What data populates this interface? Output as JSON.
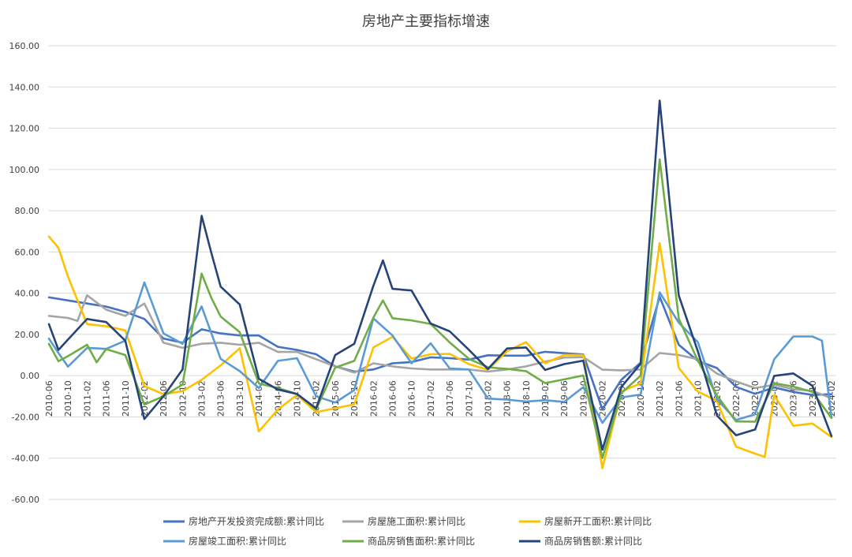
{
  "chart_data": {
    "type": "line",
    "title": "房地产主要指标增速",
    "xlabel": "",
    "ylabel": "",
    "ylim": [
      -60,
      160
    ],
    "y_ticks": [
      "160.00",
      "140.00",
      "120.00",
      "100.00",
      "80.00",
      "60.00",
      "40.00",
      "20.00",
      "0.00",
      "-20.00",
      "-40.00",
      "-60.00"
    ],
    "x_tick_labels": [
      "2010-06",
      "2010-10",
      "2011-02",
      "2011-06",
      "2011-10",
      "2012-02",
      "2012-06",
      "2012-10",
      "2013-02",
      "2013-06",
      "2013-10",
      "2014-02",
      "2014-06",
      "2014-10",
      "2015-02",
      "2015-06",
      "2015-10",
      "2016-02",
      "2016-06",
      "2016-10",
      "2017-02",
      "2017-06",
      "2017-10",
      "2018-02",
      "2018-06",
      "2018-10",
      "2019-02",
      "2019-06",
      "2019-10",
      "2020-02",
      "2020-06",
      "2020-10",
      "2021-02",
      "2021-06",
      "2021-10",
      "2022-02",
      "2022-06",
      "2022-10",
      "2023-02",
      "2023-06",
      "2023-10",
      "2024-02"
    ],
    "grid": true,
    "legend_position": "bottom",
    "series": [
      {
        "name": "房地产开发投资完成额:累计同比",
        "color": "#4472C4",
        "points": [
          [
            "2010-06",
            38
          ],
          [
            "2010-10",
            36.5
          ],
          [
            "2011-02",
            35
          ],
          [
            "2011-06",
            33.5
          ],
          [
            "2011-10",
            31
          ],
          [
            "2012-02",
            27.5
          ],
          [
            "2012-06",
            18
          ],
          [
            "2012-10",
            16
          ],
          [
            "2013-02",
            22.5
          ],
          [
            "2013-06",
            20.5
          ],
          [
            "2013-10",
            19.5
          ],
          [
            "2014-02",
            19.5
          ],
          [
            "2014-06",
            14
          ],
          [
            "2014-10",
            12.5
          ],
          [
            "2015-02",
            10.4
          ],
          [
            "2015-06",
            4.5
          ],
          [
            "2015-10",
            2
          ],
          [
            "2016-02",
            3
          ],
          [
            "2016-06",
            6
          ],
          [
            "2016-10",
            6.6
          ],
          [
            "2017-02",
            8.9
          ],
          [
            "2017-06",
            8.5
          ],
          [
            "2017-10",
            7.8
          ],
          [
            "2018-02",
            9.9
          ],
          [
            "2018-06",
            9.7
          ],
          [
            "2018-10",
            9.7
          ],
          [
            "2019-02",
            11.6
          ],
          [
            "2019-06",
            10.9
          ],
          [
            "2019-10",
            10.3
          ],
          [
            "2020-02",
            -16.3
          ],
          [
            "2020-06",
            -1.9
          ],
          [
            "2020-10",
            6.3
          ],
          [
            "2021-02",
            38.3
          ],
          [
            "2021-06",
            15
          ],
          [
            "2021-10",
            7.2
          ],
          [
            "2022-02",
            3.7
          ],
          [
            "2022-06",
            -5.4
          ],
          [
            "2022-10",
            -8.8
          ],
          [
            "2023-02",
            -5.7
          ],
          [
            "2023-06",
            -7.9
          ],
          [
            "2023-10",
            -9.3
          ],
          [
            "2024-02",
            -9
          ]
        ]
      },
      {
        "name": "房屋施工面积:累计同比",
        "color": "#A5A5A5",
        "points": [
          [
            "2010-06",
            29
          ],
          [
            "2010-10",
            28
          ],
          [
            "2010-12",
            26.6
          ],
          [
            "2011-02",
            39
          ],
          [
            "2011-06",
            32
          ],
          [
            "2011-10",
            29
          ],
          [
            "2012-02",
            35
          ],
          [
            "2012-06",
            16
          ],
          [
            "2012-10",
            13.5
          ],
          [
            "2013-02",
            15.5
          ],
          [
            "2013-06",
            16
          ],
          [
            "2013-10",
            15
          ],
          [
            "2014-02",
            16
          ],
          [
            "2014-06",
            11.5
          ],
          [
            "2014-10",
            11.5
          ],
          [
            "2015-02",
            8
          ],
          [
            "2015-06",
            4.5
          ],
          [
            "2015-10",
            1.5
          ],
          [
            "2016-02",
            6
          ],
          [
            "2016-06",
            4.5
          ],
          [
            "2016-10",
            3.5
          ],
          [
            "2017-02",
            3
          ],
          [
            "2017-06",
            3
          ],
          [
            "2017-10",
            3
          ],
          [
            "2018-02",
            2
          ],
          [
            "2018-06",
            3
          ],
          [
            "2018-10",
            4.5
          ],
          [
            "2019-02",
            6.8
          ],
          [
            "2019-06",
            8.8
          ],
          [
            "2019-10",
            9
          ],
          [
            "2020-02",
            2.9
          ],
          [
            "2020-06",
            2.6
          ],
          [
            "2020-10",
            3
          ],
          [
            "2021-02",
            11
          ],
          [
            "2021-06",
            10
          ],
          [
            "2021-10",
            8
          ],
          [
            "2022-02",
            1
          ],
          [
            "2022-06",
            -2.8
          ],
          [
            "2022-10",
            -6
          ],
          [
            "2023-02",
            -4.4
          ],
          [
            "2023-06",
            -6.6
          ],
          [
            "2023-10",
            -7.3
          ],
          [
            "2024-02",
            -11
          ]
        ]
      },
      {
        "name": "房屋新开工面积:累计同比",
        "color": "#FFC000",
        "points": [
          [
            "2010-06",
            67.5
          ],
          [
            "2010-08",
            62
          ],
          [
            "2010-10",
            48
          ],
          [
            "2011-02",
            25
          ],
          [
            "2011-06",
            24
          ],
          [
            "2011-10",
            22
          ],
          [
            "2012-02",
            -5
          ],
          [
            "2012-06",
            -9
          ],
          [
            "2012-10",
            -7.5
          ],
          [
            "2013-02",
            -2
          ],
          [
            "2013-06",
            5
          ],
          [
            "2013-10",
            13.3
          ],
          [
            "2014-02",
            -27
          ],
          [
            "2014-06",
            -16.4
          ],
          [
            "2014-10",
            -9.3
          ],
          [
            "2015-02",
            -17.7
          ],
          [
            "2015-06",
            -15.8
          ],
          [
            "2015-10",
            -13.9
          ],
          [
            "2016-02",
            13.7
          ],
          [
            "2016-06",
            18.8
          ],
          [
            "2016-10",
            8.3
          ],
          [
            "2017-02",
            10.4
          ],
          [
            "2017-06",
            10.6
          ],
          [
            "2017-10",
            5.6
          ],
          [
            "2018-02",
            2.9
          ],
          [
            "2018-06",
            11.8
          ],
          [
            "2018-10",
            16.3
          ],
          [
            "2019-02",
            6
          ],
          [
            "2019-06",
            10.1
          ],
          [
            "2019-10",
            10
          ],
          [
            "2020-02",
            -44.9
          ],
          [
            "2020-06",
            -7.6
          ],
          [
            "2020-10",
            -3.7
          ],
          [
            "2021-02",
            64.3
          ],
          [
            "2021-06",
            3.8
          ],
          [
            "2021-10",
            -7.7
          ],
          [
            "2022-02",
            -12.2
          ],
          [
            "2022-06",
            -34.4
          ],
          [
            "2022-10",
            -37.8
          ],
          [
            "2022-12",
            -39.4
          ],
          [
            "2023-02",
            -9.4
          ],
          [
            "2023-06",
            -24.3
          ],
          [
            "2023-10",
            -23.2
          ],
          [
            "2024-02",
            -29.7
          ]
        ]
      },
      {
        "name": "房屋竣工面积:累计同比",
        "color": "#5B9BD5",
        "points": [
          [
            "2010-06",
            18
          ],
          [
            "2010-08",
            11
          ],
          [
            "2010-10",
            4.4
          ],
          [
            "2011-02",
            13.5
          ],
          [
            "2011-06",
            13
          ],
          [
            "2011-10",
            17
          ],
          [
            "2012-02",
            45.2
          ],
          [
            "2012-06",
            20.5
          ],
          [
            "2012-10",
            15.5
          ],
          [
            "2013-02",
            33.6
          ],
          [
            "2013-06",
            8.2
          ],
          [
            "2013-10",
            2.2
          ],
          [
            "2014-02",
            -6
          ],
          [
            "2014-06",
            7.2
          ],
          [
            "2014-10",
            8.5
          ],
          [
            "2015-02",
            -10
          ],
          [
            "2015-06",
            -13
          ],
          [
            "2015-10",
            -7
          ],
          [
            "2016-02",
            27.8
          ],
          [
            "2016-06",
            19.5
          ],
          [
            "2016-10",
            6
          ],
          [
            "2017-02",
            15.7
          ],
          [
            "2017-06",
            3.5
          ],
          [
            "2017-10",
            3
          ],
          [
            "2018-02",
            -11.1
          ],
          [
            "2018-06",
            -11.6
          ],
          [
            "2018-10",
            -12.5
          ],
          [
            "2019-02",
            -11.9
          ],
          [
            "2019-06",
            -12.7
          ],
          [
            "2019-10",
            -5.5
          ],
          [
            "2020-02",
            -22.9
          ],
          [
            "2020-06",
            -10.5
          ],
          [
            "2020-10",
            -9.2
          ],
          [
            "2021-02",
            40.4
          ],
          [
            "2021-06",
            25.7
          ],
          [
            "2021-10",
            16.3
          ],
          [
            "2022-02",
            -11.5
          ],
          [
            "2022-06",
            -21.5
          ],
          [
            "2022-10",
            -18.7
          ],
          [
            "2023-02",
            8
          ],
          [
            "2023-06",
            19
          ],
          [
            "2023-10",
            19
          ],
          [
            "2023-12",
            17
          ],
          [
            "2024-02",
            -20.2
          ]
        ]
      },
      {
        "name": "商品房销售面积:累计同比",
        "color": "#70AD47",
        "points": [
          [
            "2010-06",
            15.4
          ],
          [
            "2010-08",
            7
          ],
          [
            "2010-10",
            9.5
          ],
          [
            "2011-02",
            15
          ],
          [
            "2011-04",
            6.5
          ],
          [
            "2011-06",
            12.9
          ],
          [
            "2011-10",
            10
          ],
          [
            "2012-02",
            -14
          ],
          [
            "2012-06",
            -10
          ],
          [
            "2012-10",
            -4.3
          ],
          [
            "2013-02",
            49.5
          ],
          [
            "2013-04",
            38
          ],
          [
            "2013-06",
            28.7
          ],
          [
            "2013-10",
            21.1
          ],
          [
            "2014-02",
            -3.8
          ],
          [
            "2014-06",
            -6
          ],
          [
            "2014-10",
            -8.9
          ],
          [
            "2015-02",
            -16.3
          ],
          [
            "2015-06",
            3.9
          ],
          [
            "2015-10",
            7.2
          ],
          [
            "2016-02",
            28.2
          ],
          [
            "2016-04",
            36.5
          ],
          [
            "2016-06",
            27.9
          ],
          [
            "2016-10",
            26.8
          ],
          [
            "2017-02",
            25.1
          ],
          [
            "2017-06",
            16.1
          ],
          [
            "2017-10",
            8.2
          ],
          [
            "2018-02",
            4.1
          ],
          [
            "2018-06",
            3.3
          ],
          [
            "2018-10",
            2.2
          ],
          [
            "2019-02",
            -3.6
          ],
          [
            "2019-06",
            -1.8
          ],
          [
            "2019-10",
            0.1
          ],
          [
            "2020-02",
            -39.9
          ],
          [
            "2020-06",
            -8.4
          ],
          [
            "2020-10",
            0
          ],
          [
            "2021-02",
            104.9
          ],
          [
            "2021-06",
            27.7
          ],
          [
            "2021-10",
            7.3
          ],
          [
            "2022-02",
            -9.6
          ],
          [
            "2022-06",
            -22.2
          ],
          [
            "2022-10",
            -22.3
          ],
          [
            "2023-02",
            -3.6
          ],
          [
            "2023-06",
            -5.3
          ],
          [
            "2023-10",
            -7.8
          ],
          [
            "2024-02",
            -20.5
          ]
        ]
      },
      {
        "name": "商品房销售额:累计同比",
        "color": "#264478",
        "points": [
          [
            "2010-06",
            25
          ],
          [
            "2010-08",
            12.5
          ],
          [
            "2010-10",
            17.5
          ],
          [
            "2011-02",
            27.5
          ],
          [
            "2011-06",
            26
          ],
          [
            "2011-10",
            17
          ],
          [
            "2012-02",
            -21
          ],
          [
            "2012-06",
            -10
          ],
          [
            "2012-10",
            3
          ],
          [
            "2013-02",
            77.5
          ],
          [
            "2013-04",
            60
          ],
          [
            "2013-06",
            43.2
          ],
          [
            "2013-10",
            34.5
          ],
          [
            "2014-02",
            -1.5
          ],
          [
            "2014-06",
            -6.7
          ],
          [
            "2014-10",
            -8.9
          ],
          [
            "2015-02",
            -15.8
          ],
          [
            "2015-06",
            10
          ],
          [
            "2015-10",
            15.5
          ],
          [
            "2016-02",
            43.6
          ],
          [
            "2016-04",
            55.9
          ],
          [
            "2016-06",
            42.1
          ],
          [
            "2016-10",
            41.3
          ],
          [
            "2017-02",
            25.3
          ],
          [
            "2017-06",
            21.5
          ],
          [
            "2017-10",
            12.6
          ],
          [
            "2018-02",
            3.2
          ],
          [
            "2018-06",
            13.2
          ],
          [
            "2018-10",
            13.7
          ],
          [
            "2019-02",
            2.8
          ],
          [
            "2019-06",
            5.6
          ],
          [
            "2019-10",
            7.3
          ],
          [
            "2020-02",
            -35.9
          ],
          [
            "2020-06",
            -5.4
          ],
          [
            "2020-10",
            5.8
          ],
          [
            "2021-02",
            133.4
          ],
          [
            "2021-06",
            38.9
          ],
          [
            "2021-10",
            11.8
          ],
          [
            "2022-02",
            -19.3
          ],
          [
            "2022-06",
            -28.9
          ],
          [
            "2022-10",
            -26.1
          ],
          [
            "2023-02",
            -0.1
          ],
          [
            "2023-06",
            1.1
          ],
          [
            "2023-10",
            -4.9
          ],
          [
            "2024-02",
            -29.3
          ]
        ]
      }
    ]
  }
}
